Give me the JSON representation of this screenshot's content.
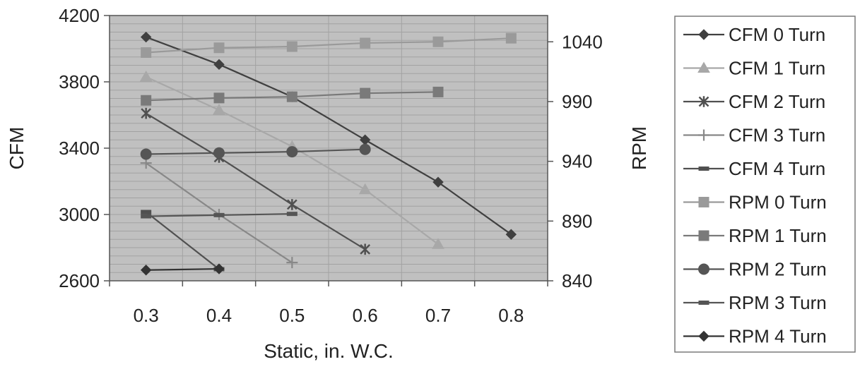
{
  "chart_data": {
    "type": "line",
    "xlabel": "Static, in. W.C.",
    "ylabel": "CFM",
    "y2label": "RPM",
    "x_ticks": [
      "0.3",
      "0.4",
      "0.5",
      "0.6",
      "0.7",
      "0.8"
    ],
    "y_ticks": [
      "2600",
      "3000",
      "3400",
      "3800",
      "4200"
    ],
    "y2_ticks": [
      "840",
      "890",
      "940",
      "990",
      "1040"
    ],
    "xlim": [
      0.25,
      0.85
    ],
    "ylim": [
      2600,
      4200
    ],
    "y2lim": [
      840,
      1062
    ],
    "grid": true,
    "legend_position": "right",
    "series": [
      {
        "name": "CFM 0 Turn",
        "axis": "left",
        "marker": "diamond",
        "color": "#404040",
        "x": [
          0.3,
          0.4,
          0.5,
          0.6,
          0.7,
          0.8
        ],
        "values": [
          4070,
          3905,
          3710,
          3450,
          3195,
          2880
        ]
      },
      {
        "name": "CFM 1 Turn",
        "axis": "left",
        "marker": "triangle",
        "color": "#a8a8a8",
        "x": [
          0.3,
          0.4,
          0.5,
          0.6,
          0.7
        ],
        "values": [
          3830,
          3630,
          3410,
          3150,
          2820
        ]
      },
      {
        "name": "CFM 2 Turn",
        "axis": "left",
        "marker": "star",
        "color": "#505050",
        "x": [
          0.3,
          0.4,
          0.5,
          0.6
        ],
        "values": [
          3610,
          3345,
          3060,
          2790
        ]
      },
      {
        "name": "CFM 3 Turn",
        "axis": "left",
        "marker": "plus",
        "color": "#888888",
        "x": [
          0.3,
          0.4,
          0.5
        ],
        "values": [
          3310,
          3000,
          2710
        ]
      },
      {
        "name": "CFM 4 Turn",
        "axis": "left",
        "marker": "dash",
        "color": "#505050",
        "x": [
          0.3,
          0.4
        ],
        "values": [
          3015,
          2670
        ]
      },
      {
        "name": "RPM 0 Turn",
        "axis": "right",
        "marker": "square",
        "color": "#9a9a9a",
        "x": [
          0.3,
          0.4,
          0.5,
          0.6,
          0.7,
          0.8
        ],
        "values": [
          1031,
          1035,
          1036,
          1039,
          1040,
          1043
        ]
      },
      {
        "name": "RPM 1 Turn",
        "axis": "right",
        "marker": "square",
        "color": "#7a7a7a",
        "x": [
          0.3,
          0.4,
          0.5,
          0.6,
          0.7
        ],
        "values": [
          991,
          993,
          994,
          997,
          998
        ]
      },
      {
        "name": "RPM 2 Turn",
        "axis": "right",
        "marker": "circle",
        "color": "#555555",
        "x": [
          0.3,
          0.4,
          0.5,
          0.6
        ],
        "values": [
          946,
          947,
          948,
          950
        ]
      },
      {
        "name": "RPM 3 Turn",
        "axis": "right",
        "marker": "dash",
        "color": "#555555",
        "x": [
          0.3,
          0.4,
          0.5
        ],
        "values": [
          894,
          895,
          896
        ]
      },
      {
        "name": "RPM 4 Turn",
        "axis": "right",
        "marker": "diamond",
        "color": "#333333",
        "x": [
          0.3,
          0.4
        ],
        "values": [
          849,
          850
        ]
      }
    ]
  },
  "colors": {
    "plot_background": "#c0c0c0",
    "grid_line": "#a2a2a2",
    "axis_line": "#555555"
  }
}
